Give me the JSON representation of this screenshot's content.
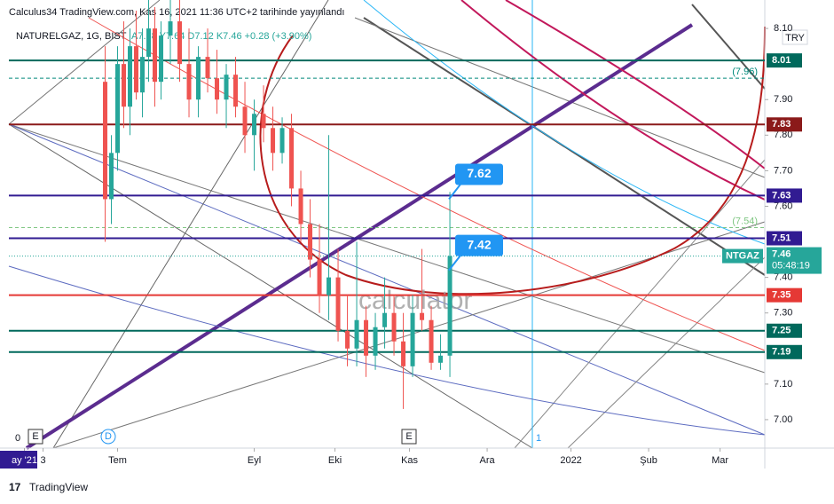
{
  "chart_data": {
    "type": "candlestick",
    "header": "Calculus34 TradingView.com, Kas 16, 2021 11:36 UTC+2 tarihinde yayınlandı",
    "legend": "NATURELGAZ, 1G, BIST",
    "ohlc_text": "A7.18 Y7.64 D7.12 K7.46 +0.28 (+3.90%)",
    "currency": "TRY",
    "symbol": "NTGAZ",
    "last": 7.46,
    "countdown": "05:48:19",
    "watermark": "calculator",
    "footer": "TradingView",
    "up_color": "#26a69a",
    "down_color": "#ef5350",
    "xlim": [
      0,
      243.4
    ],
    "ylim": [
      6.92,
      8.18
    ],
    "yticks": [
      {
        "value": 7.0,
        "label": "7.00"
      },
      {
        "value": 7.1,
        "label": "7.10"
      },
      {
        "value": 7.3,
        "label": "7.30"
      },
      {
        "value": 7.4,
        "label": "7.40"
      },
      {
        "value": 7.6,
        "label": "7.60"
      },
      {
        "value": 7.7,
        "label": "7.70"
      },
      {
        "value": 7.8,
        "label": "7.80"
      },
      {
        "value": 7.9,
        "label": "7.90"
      },
      {
        "value": 8.1,
        "label": "8.10"
      }
    ],
    "xticks": [
      {
        "value": 5,
        "label": "ay '21"
      },
      {
        "value": 11,
        "label": "3"
      },
      {
        "value": 35,
        "label": "Tem"
      },
      {
        "value": 79,
        "label": "Eyl"
      },
      {
        "value": 105,
        "label": "Eki"
      },
      {
        "value": 129,
        "label": "Kas"
      },
      {
        "value": 154,
        "label": "Ara"
      },
      {
        "value": 181,
        "label": "2022"
      },
      {
        "value": 206,
        "label": "Şub"
      },
      {
        "value": 229,
        "label": "Mar"
      }
    ],
    "x": [
      31,
      33,
      35,
      37,
      39,
      41,
      43,
      45,
      47,
      49,
      52,
      55,
      58,
      61,
      64,
      67,
      70,
      73,
      76,
      79,
      82,
      85,
      88,
      91,
      94,
      97,
      100,
      103,
      106,
      109,
      112,
      115,
      118,
      121,
      124,
      127,
      130,
      133,
      136,
      139,
      142
    ],
    "open": [
      7.95,
      7.62,
      7.75,
      8.0,
      7.88,
      8.05,
      7.92,
      8.02,
      8.1,
      7.95,
      8.08,
      8.12,
      8.0,
      7.9,
      8.02,
      7.96,
      7.9,
      7.97,
      7.88,
      7.8,
      7.86,
      7.82,
      7.75,
      7.82,
      7.65,
      7.55,
      7.45,
      7.35,
      7.4,
      7.25,
      7.2,
      7.28,
      7.18,
      7.26,
      7.3,
      7.22,
      7.15,
      7.3,
      7.28,
      7.16,
      7.18
    ],
    "high": [
      8.05,
      7.8,
      8.05,
      8.12,
      8.1,
      8.15,
      8.1,
      8.18,
      8.16,
      8.12,
      8.18,
      8.18,
      8.1,
      8.05,
      8.1,
      8.04,
      8.0,
      8.02,
      7.95,
      7.9,
      7.94,
      7.88,
      7.85,
      7.86,
      7.7,
      7.62,
      7.55,
      7.8,
      7.48,
      7.35,
      7.5,
      7.32,
      7.3,
      7.4,
      7.35,
      7.3,
      7.35,
      7.48,
      7.32,
      7.24,
      7.64
    ],
    "low": [
      7.5,
      7.55,
      7.7,
      7.82,
      7.8,
      7.9,
      7.85,
      7.95,
      7.88,
      7.9,
      8.0,
      7.95,
      7.85,
      7.85,
      7.92,
      7.86,
      7.82,
      7.85,
      7.75,
      7.7,
      7.78,
      7.7,
      7.72,
      7.6,
      7.5,
      7.4,
      7.3,
      7.28,
      7.22,
      7.15,
      7.15,
      7.12,
      7.14,
      7.2,
      7.18,
      7.03,
      7.12,
      7.25,
      7.14,
      7.14,
      7.12
    ],
    "close": [
      7.62,
      7.75,
      8.0,
      7.88,
      8.05,
      7.92,
      8.02,
      8.1,
      7.95,
      8.08,
      8.12,
      8.0,
      7.9,
      8.02,
      7.96,
      7.9,
      7.97,
      7.88,
      7.8,
      7.86,
      7.82,
      7.75,
      7.82,
      7.65,
      7.55,
      7.45,
      7.35,
      7.4,
      7.25,
      7.2,
      7.28,
      7.18,
      7.26,
      7.3,
      7.22,
      7.15,
      7.3,
      7.28,
      7.16,
      7.18,
      7.46
    ],
    "levels": [
      {
        "value": 8.01,
        "color": "#00695c"
      },
      {
        "value": 7.83,
        "color": "#8b1a1a"
      },
      {
        "value": 7.63,
        "color": "#311b92"
      },
      {
        "value": 7.51,
        "color": "#311b92"
      },
      {
        "value": 7.35,
        "color": "#e53935"
      },
      {
        "value": 7.25,
        "color": "#00695c"
      },
      {
        "value": 7.19,
        "color": "#00695c"
      }
    ],
    "dashed_levels": [
      {
        "value": 7.96,
        "label": "(7.96)",
        "color": "#00897b"
      },
      {
        "value": 7.54,
        "label": "(7.54)",
        "color": "#81c784"
      }
    ],
    "callouts": [
      7.62,
      7.42
    ],
    "markers": [
      "0",
      "E",
      "D",
      "E",
      "1"
    ]
  }
}
